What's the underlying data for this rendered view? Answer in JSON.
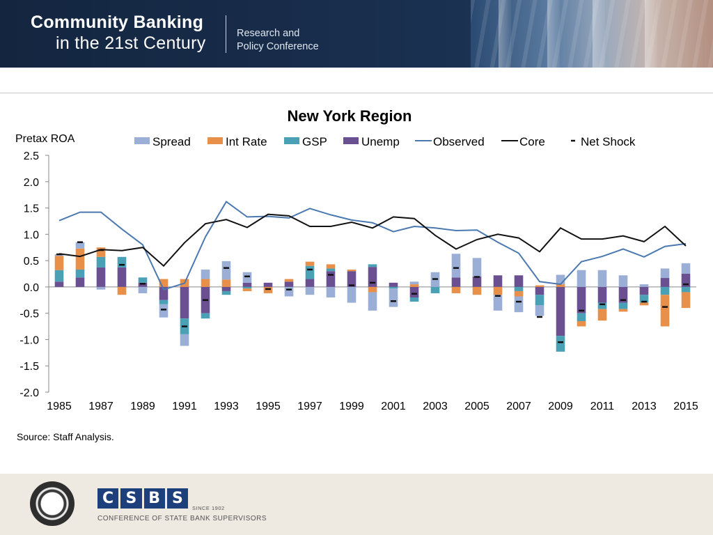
{
  "banner": {
    "title_line1": "Community Banking",
    "title_line2": "in the 21st Century",
    "subtitle_line1": "Research and",
    "subtitle_line2": "Policy Conference"
  },
  "footer": {
    "csbs_letters": [
      "C",
      "S",
      "B",
      "S"
    ],
    "since": "SINCE 1902",
    "org_name": "CONFERENCE OF STATE BANK SUPERVISORS"
  },
  "chart_data": {
    "type": "bar",
    "title": "New York Region",
    "ylabel": "Pretax ROA",
    "xlabel": "",
    "source": "Source: Staff Analysis.",
    "ylim": [
      -2.0,
      2.5
    ],
    "yticks": [
      "2.5",
      "2.0",
      "1.5",
      "1.0",
      "0.5",
      "0.0",
      "-0.5",
      "-1.0",
      "-1.5",
      "-2.0"
    ],
    "x": [
      1985,
      1986,
      1987,
      1988,
      1989,
      1990,
      1991,
      1992,
      1993,
      1994,
      1995,
      1996,
      1997,
      1998,
      1999,
      2000,
      2001,
      2002,
      2003,
      2004,
      2005,
      2006,
      2007,
      2008,
      2009,
      2010,
      2011,
      2012,
      2013,
      2014,
      2015
    ],
    "xtick_labels": [
      "1985",
      "1987",
      "1989",
      "1991",
      "1993",
      "1995",
      "1997",
      "1999",
      "2001",
      "2003",
      "2005",
      "2007",
      "2009",
      "2011",
      "2013",
      "2015"
    ],
    "legend_position": "top",
    "colors": {
      "spread": "#9aaed6",
      "int_rate": "#e8904a",
      "gsp": "#4aa0b5",
      "unemp": "#6a4f91",
      "observed": "#4a78b0",
      "core": "#111111",
      "net_shock": "#111111"
    },
    "stack_order": [
      "unemp",
      "gsp",
      "int_rate",
      "spread"
    ],
    "bar_series": [
      {
        "key": "spread",
        "name": "Spread",
        "values": [
          0.03,
          0.12,
          -0.05,
          0.0,
          -0.12,
          -0.25,
          -0.22,
          0.18,
          0.35,
          0.2,
          0.0,
          -0.18,
          -0.15,
          -0.2,
          -0.3,
          -0.35,
          -0.35,
          0.05,
          0.28,
          0.45,
          0.35,
          -0.3,
          -0.3,
          -0.2,
          0.18,
          0.32,
          0.32,
          0.22,
          0.05,
          0.18,
          0.2
        ]
      },
      {
        "key": "int_rate",
        "name": "Int Rate",
        "values": [
          0.27,
          0.4,
          0.18,
          -0.15,
          0.0,
          0.15,
          0.15,
          0.15,
          0.14,
          -0.05,
          -0.12,
          0.05,
          0.08,
          0.08,
          0.03,
          -0.1,
          0.0,
          0.05,
          0.0,
          -0.12,
          -0.15,
          -0.15,
          -0.1,
          0.03,
          0.05,
          -0.1,
          -0.22,
          -0.05,
          -0.05,
          -0.6,
          -0.3
        ]
      },
      {
        "key": "gsp",
        "name": "GSP",
        "values": [
          0.22,
          0.15,
          0.2,
          0.2,
          0.1,
          -0.08,
          -0.3,
          -0.1,
          -0.07,
          -0.03,
          0.0,
          0.0,
          0.25,
          0.05,
          0.0,
          0.05,
          -0.03,
          -0.08,
          -0.12,
          0.0,
          0.0,
          0.0,
          -0.08,
          -0.2,
          -0.3,
          -0.15,
          -0.12,
          -0.12,
          -0.15,
          -0.15,
          -0.1
        ]
      },
      {
        "key": "unemp",
        "name": "Unemp",
        "values": [
          0.1,
          0.18,
          0.37,
          0.37,
          0.08,
          -0.25,
          -0.6,
          -0.5,
          -0.08,
          0.08,
          0.08,
          0.1,
          0.15,
          0.3,
          0.3,
          0.38,
          0.08,
          -0.2,
          0.0,
          0.18,
          0.2,
          0.22,
          0.22,
          -0.15,
          -0.93,
          -0.5,
          -0.3,
          -0.3,
          -0.15,
          0.17,
          0.25
        ]
      }
    ],
    "line_series": [
      {
        "key": "observed",
        "name": "Observed",
        "values": [
          1.26,
          1.42,
          1.42,
          1.1,
          0.8,
          -0.05,
          0.07,
          0.95,
          1.62,
          1.33,
          1.34,
          1.31,
          1.49,
          1.37,
          1.27,
          1.22,
          1.05,
          1.15,
          1.12,
          1.07,
          1.08,
          0.85,
          0.64,
          0.1,
          0.05,
          0.48,
          0.58,
          0.72,
          0.57,
          0.77,
          0.82
        ]
      },
      {
        "key": "core",
        "name": "Core",
        "values": [
          0.63,
          0.58,
          0.71,
          0.69,
          0.75,
          0.4,
          0.84,
          1.2,
          1.28,
          1.13,
          1.38,
          1.35,
          1.15,
          1.15,
          1.23,
          1.12,
          1.33,
          1.3,
          0.98,
          0.72,
          0.9,
          1.0,
          0.93,
          0.67,
          1.12,
          0.91,
          0.91,
          0.97,
          0.86,
          1.15,
          0.78
        ]
      }
    ],
    "net_shock": {
      "key": "net_shock",
      "name": "Net Shock",
      "values": [
        0.62,
        0.85,
        0.7,
        0.42,
        0.06,
        -0.43,
        -0.75,
        -0.25,
        0.36,
        0.2,
        -0.04,
        -0.05,
        0.33,
        0.23,
        0.03,
        0.08,
        -0.27,
        -0.13,
        0.15,
        0.36,
        0.19,
        -0.17,
        -0.28,
        -0.57,
        -1.05,
        -0.45,
        -0.33,
        -0.25,
        -0.28,
        -0.38,
        0.05
      ]
    }
  }
}
